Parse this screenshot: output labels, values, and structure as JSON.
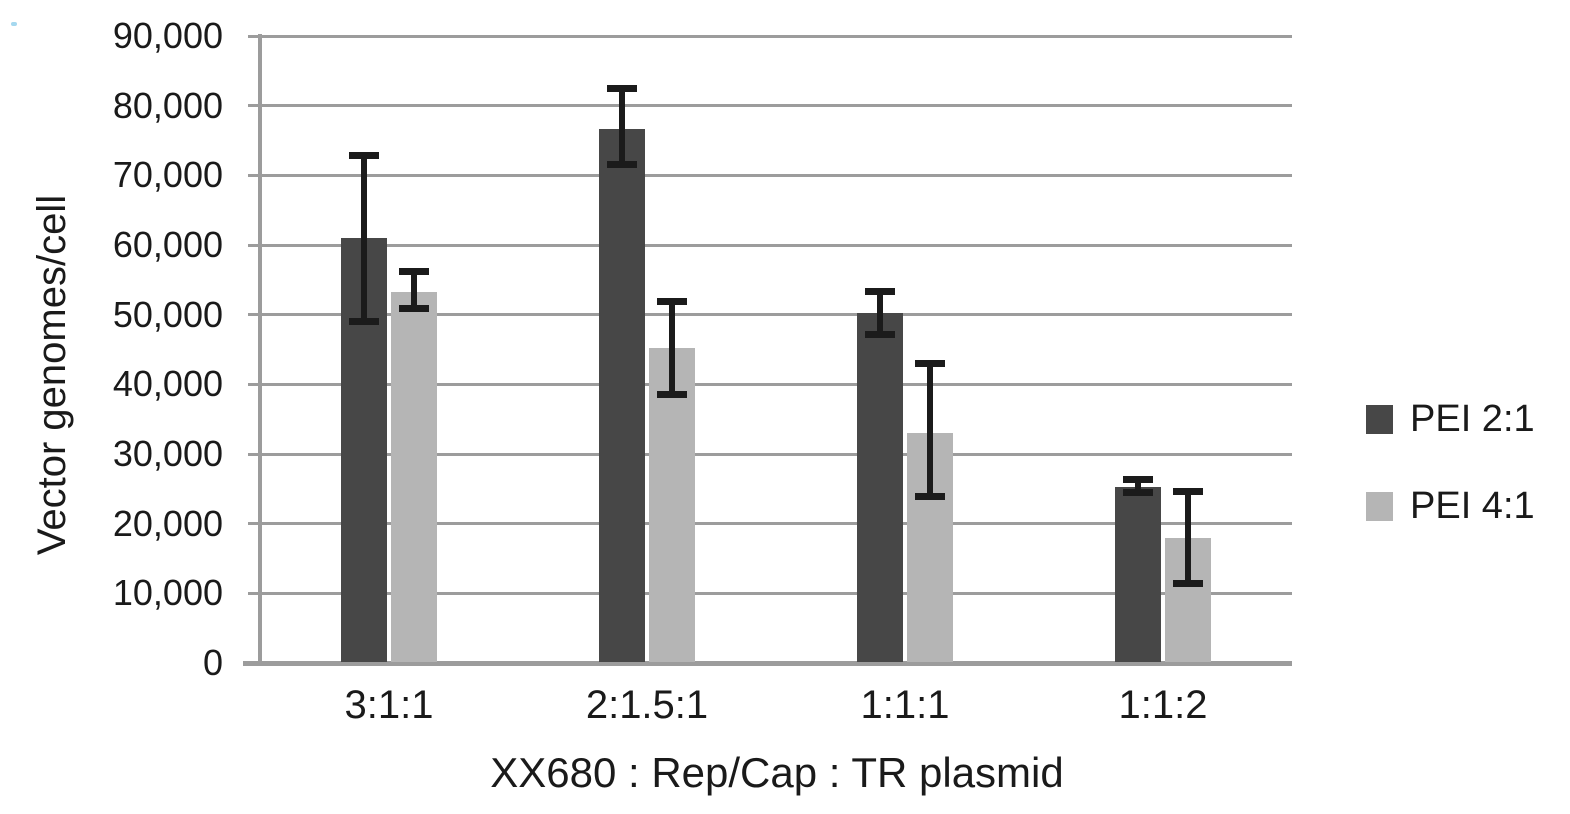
{
  "chart_data": {
    "type": "bar",
    "title": "",
    "ylabel": "Vector genomes/cell",
    "xlabel": "XX680 : Rep/Cap : TR plasmid",
    "categories": [
      "3:1:1",
      "2:1.5:1",
      "1:1:1",
      "1:1:2"
    ],
    "series": [
      {
        "name": "PEI 2:1",
        "color": "#474747",
        "values": [
          61000,
          76700,
          50200,
          25300
        ],
        "error_low": [
          49000,
          71500,
          47100,
          24500
        ],
        "error_high": [
          72900,
          82500,
          53300,
          26300
        ]
      },
      {
        "name": "PEI 4:1",
        "color": "#b5b5b5",
        "values": [
          53300,
          45200,
          33000,
          17900
        ],
        "error_low": [
          50900,
          38500,
          23900,
          11400
        ],
        "error_high": [
          56200,
          51900,
          43000,
          24600
        ]
      }
    ],
    "ylim": [
      0,
      90000
    ],
    "ytick_step": 10000,
    "ytick_labels": [
      "0",
      "10,000",
      "20,000",
      "30,000",
      "40,000",
      "50,000",
      "60,000",
      "70,000",
      "80,000",
      "90,000"
    ],
    "grid": true,
    "error_bars": true,
    "legend_position": "right",
    "colors": {
      "gridline": "#9c9c9c",
      "axis": "#9c9c9c",
      "error_bar": "#1b1b1b",
      "text": "#1a1a1a"
    }
  }
}
